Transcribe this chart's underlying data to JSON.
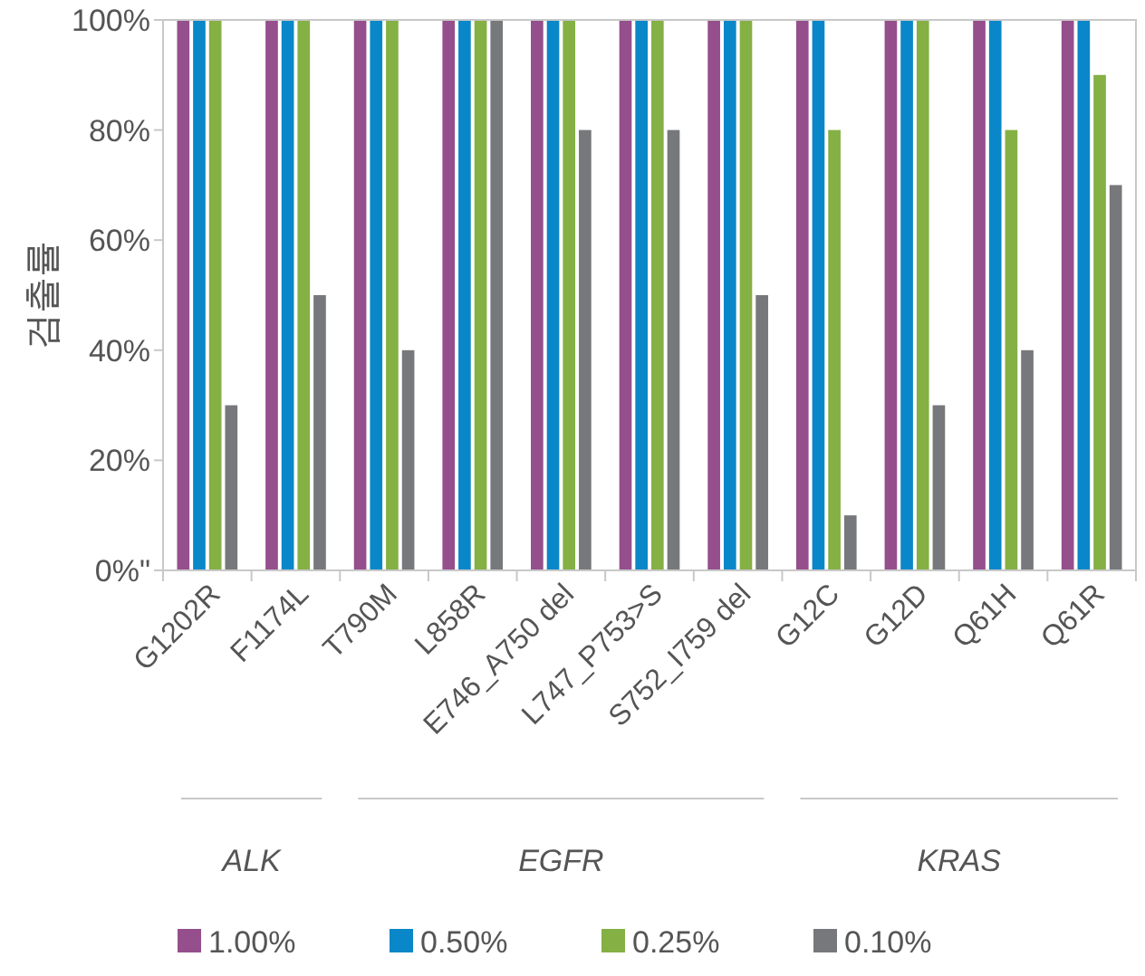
{
  "chart_data": {
    "type": "bar",
    "ylabel": "검출률",
    "categories": [
      "G1202R",
      "F1174L",
      "T790M",
      "L858R",
      "E746_A750 del",
      "L747_P753>S",
      "S752_I759 del",
      "G12C",
      "G12D",
      "Q61H",
      "Q61R"
    ],
    "series": [
      {
        "name": "1.00%",
        "color": "#954f8c",
        "values": [
          100,
          100,
          100,
          100,
          100,
          100,
          100,
          100,
          100,
          100,
          100
        ]
      },
      {
        "name": "0.50%",
        "color": "#0a87c8",
        "values": [
          100,
          100,
          100,
          100,
          100,
          100,
          100,
          100,
          100,
          100,
          100
        ]
      },
      {
        "name": "0.25%",
        "color": "#84b044",
        "values": [
          100,
          100,
          100,
          100,
          100,
          100,
          100,
          80,
          100,
          80,
          90
        ]
      },
      {
        "name": "0.10%",
        "color": "#77787b",
        "values": [
          30,
          50,
          40,
          100,
          80,
          80,
          50,
          10,
          30,
          40,
          70
        ]
      }
    ],
    "ylim": [
      0,
      100
    ],
    "yticks": [
      {
        "value": 0,
        "label": "0%\""
      },
      {
        "value": 20,
        "label": "20%"
      },
      {
        "value": 40,
        "label": "40%"
      },
      {
        "value": 60,
        "label": "60%"
      },
      {
        "value": 80,
        "label": "80%"
      },
      {
        "value": 100,
        "label": "100%"
      }
    ],
    "annotations": [
      "ALK",
      "EGFR",
      "KRAS"
    ],
    "grid": false,
    "legend": "bottom"
  }
}
